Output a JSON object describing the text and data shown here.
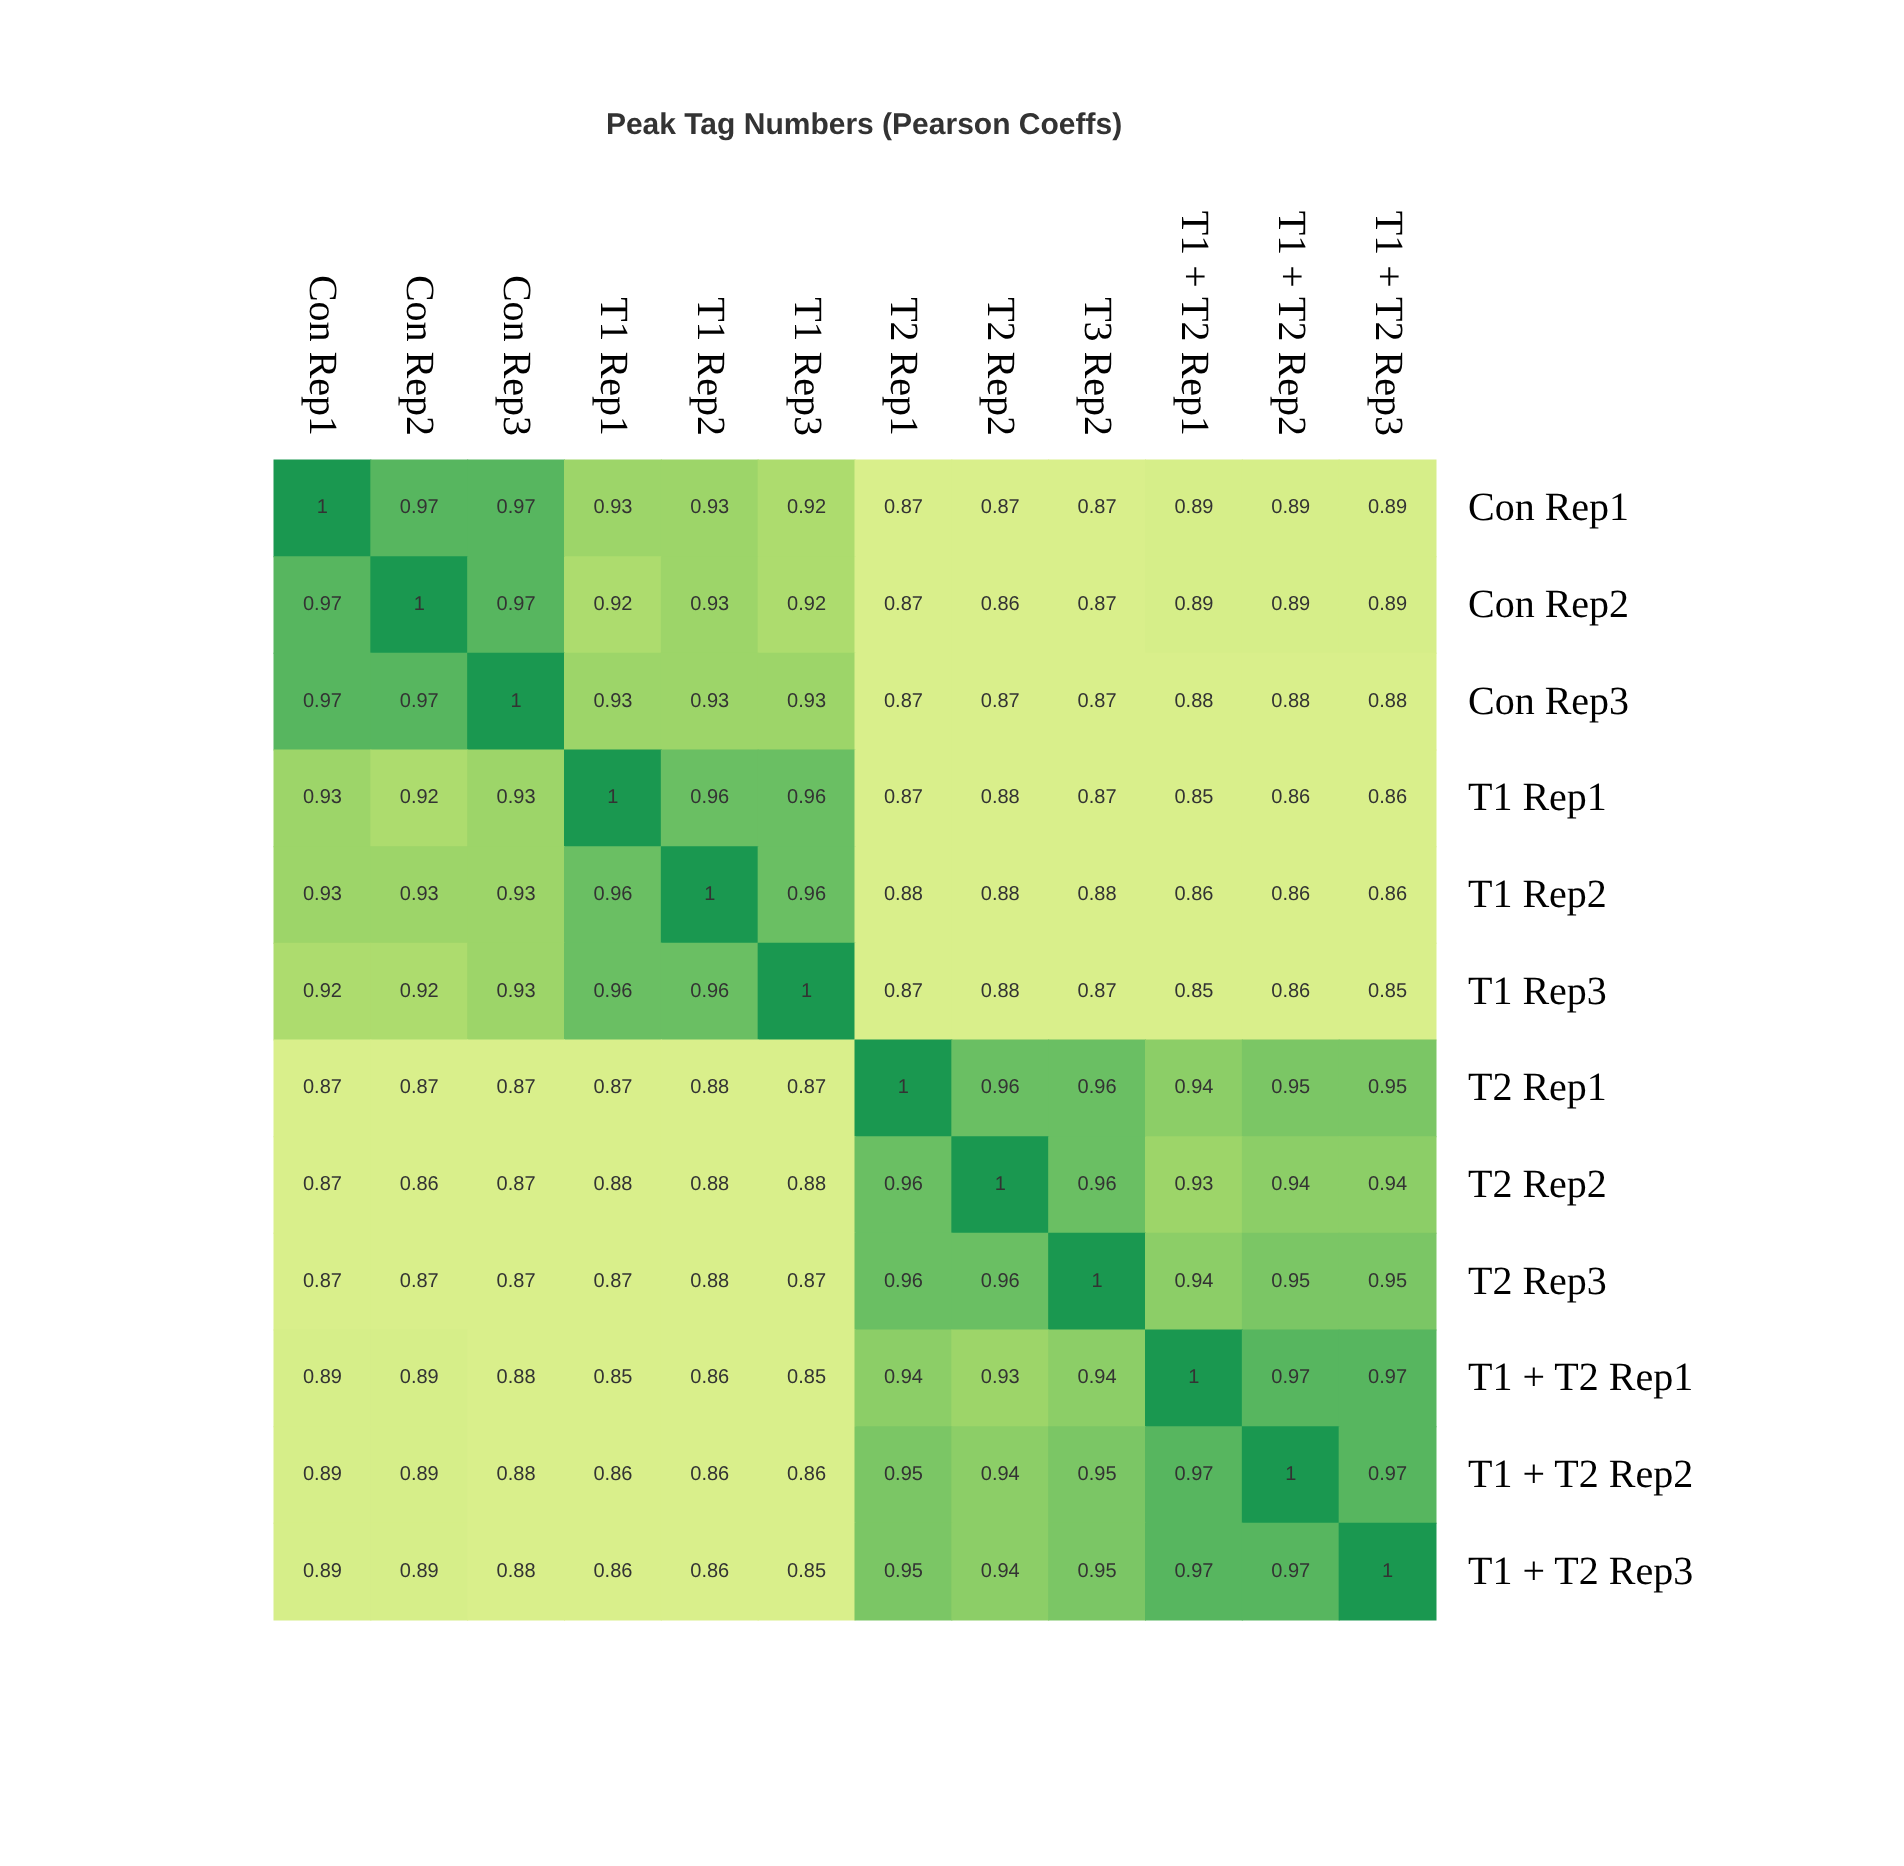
{
  "chart_data": {
    "type": "heatmap",
    "title": "Peak Tag Numbers (Pearson Coeffs)",
    "categories": [
      "Con Rep1",
      "Con Rep2",
      "Con Rep3",
      "T1 Rep1",
      "T1 Rep2",
      "T1 Rep3",
      "T2 Rep1",
      "T2 Rep2",
      "T3 Rep2",
      "T1 + T2 Rep1",
      "T1 + T2 Rep2",
      "T1 + T2 Rep3"
    ],
    "y_categories": [
      "Con Rep1",
      "Con Rep2",
      "Con Rep3",
      "T1 Rep1",
      "T1 Rep2",
      "T1 Rep3",
      "T2 Rep1",
      "T2 Rep2",
      "T2 Rep3",
      "T1 + T2 Rep1",
      "T1 + T2 Rep2",
      "T1 + T2 Rep3"
    ],
    "cells": [
      [
        1,
        0.97,
        0.97,
        0.93,
        0.93,
        0.92,
        0.87,
        0.87,
        0.87,
        0.89,
        0.89,
        0.89
      ],
      [
        0.97,
        1,
        0.97,
        0.92,
        0.93,
        0.92,
        0.87,
        0.86,
        0.87,
        0.89,
        0.89,
        0.89
      ],
      [
        0.97,
        0.97,
        1,
        0.93,
        0.93,
        0.93,
        0.87,
        0.87,
        0.87,
        0.88,
        0.88,
        0.88
      ],
      [
        0.93,
        0.92,
        0.93,
        1,
        0.96,
        0.96,
        0.87,
        0.88,
        0.87,
        0.85,
        0.86,
        0.86
      ],
      [
        0.93,
        0.93,
        0.93,
        0.96,
        1,
        0.96,
        0.88,
        0.88,
        0.88,
        0.86,
        0.86,
        0.86
      ],
      [
        0.92,
        0.92,
        0.93,
        0.96,
        0.96,
        1,
        0.87,
        0.88,
        0.87,
        0.85,
        0.86,
        0.85
      ],
      [
        0.87,
        0.87,
        0.87,
        0.87,
        0.88,
        0.87,
        1,
        0.96,
        0.96,
        0.94,
        0.95,
        0.95
      ],
      [
        0.87,
        0.86,
        0.87,
        0.88,
        0.88,
        0.88,
        0.96,
        1,
        0.96,
        0.93,
        0.94,
        0.94
      ],
      [
        0.87,
        0.87,
        0.87,
        0.87,
        0.88,
        0.87,
        0.96,
        0.96,
        1,
        0.94,
        0.95,
        0.95
      ],
      [
        0.89,
        0.89,
        0.88,
        0.85,
        0.86,
        0.85,
        0.94,
        0.93,
        0.94,
        1,
        0.97,
        0.97
      ],
      [
        0.89,
        0.89,
        0.88,
        0.86,
        0.86,
        0.86,
        0.95,
        0.94,
        0.95,
        0.97,
        1,
        0.97
      ],
      [
        0.89,
        0.89,
        0.88,
        0.86,
        0.86,
        0.85,
        0.95,
        0.94,
        0.95,
        0.97,
        0.97,
        1
      ]
    ],
    "colors": [
      "#d9ef8b",
      "#d9ef8b",
      "#a6d96a",
      "#66bd63",
      "#1a9850"
    ],
    "data_labels": true
  }
}
